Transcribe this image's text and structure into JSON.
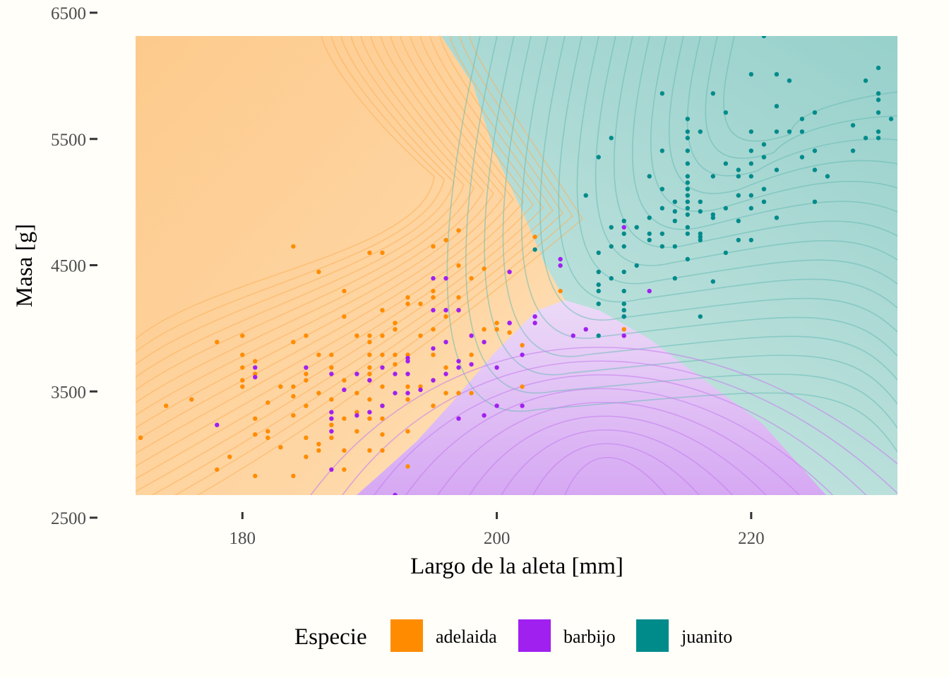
{
  "chart_data": {
    "type": "scatter",
    "xlabel": "Largo de la aleta [mm]",
    "ylabel": "Masa [g]",
    "xlim": [
      171.6,
      231.5
    ],
    "ylim": [
      2700,
      6300
    ],
    "x_ticks": [
      180,
      200,
      220
    ],
    "y_ticks": [
      2500,
      3500,
      4500,
      5500,
      6500
    ],
    "x_tick_labels": [
      "180",
      "200",
      "220"
    ],
    "y_tick_labels": [
      "2500",
      "3500",
      "4500",
      "5500",
      "6500"
    ],
    "background": "decision regions with density contour lines",
    "legend": {
      "title": "Especie",
      "placement": "bottom",
      "entries": [
        {
          "label": "adelaida",
          "color": "#ff8c00"
        },
        {
          "label": "barbijo",
          "color": "#a020f0"
        },
        {
          "label": "juanito",
          "color": "#008b8b"
        }
      ]
    },
    "series": [
      {
        "name": "adelaida",
        "color": "#ff8c00",
        "points": [
          [
            172,
            3150
          ],
          [
            174,
            3400
          ],
          [
            176,
            3450
          ],
          [
            178,
            3900
          ],
          [
            178,
            2900
          ],
          [
            179,
            3000
          ],
          [
            180,
            3950
          ],
          [
            180,
            3800
          ],
          [
            180,
            3700
          ],
          [
            180,
            3600
          ],
          [
            180,
            3550
          ],
          [
            181,
            3750
          ],
          [
            181,
            3650
          ],
          [
            181,
            3300
          ],
          [
            181,
            3175
          ],
          [
            181,
            2850
          ],
          [
            182,
            3425
          ],
          [
            182,
            3200
          ],
          [
            182,
            3150
          ],
          [
            183,
            3075
          ],
          [
            183,
            3550
          ],
          [
            184,
            4650
          ],
          [
            184,
            3900
          ],
          [
            184,
            3550
          ],
          [
            184,
            3475
          ],
          [
            184,
            3325
          ],
          [
            184,
            2850
          ],
          [
            185,
            3950
          ],
          [
            185,
            3650
          ],
          [
            185,
            3600
          ],
          [
            185,
            3400
          ],
          [
            185,
            3150
          ],
          [
            185,
            3000
          ],
          [
            186,
            4450
          ],
          [
            186,
            3800
          ],
          [
            186,
            3500
          ],
          [
            186,
            3100
          ],
          [
            186,
            3050
          ],
          [
            187,
            3800
          ],
          [
            187,
            3700
          ],
          [
            187,
            3450
          ],
          [
            187,
            3300
          ],
          [
            187,
            3250
          ],
          [
            187,
            3150
          ],
          [
            188,
            4300
          ],
          [
            188,
            4100
          ],
          [
            188,
            3600
          ],
          [
            188,
            3300
          ],
          [
            188,
            3050
          ],
          [
            188,
            2900
          ],
          [
            189,
            3950
          ],
          [
            189,
            3500
          ],
          [
            189,
            3350
          ],
          [
            189,
            3200
          ],
          [
            190,
            4600
          ],
          [
            190,
            3950
          ],
          [
            190,
            3900
          ],
          [
            190,
            3800
          ],
          [
            190,
            3700
          ],
          [
            190,
            3650
          ],
          [
            190,
            3600
          ],
          [
            190,
            3450
          ],
          [
            190,
            3300
          ],
          [
            190,
            3050
          ],
          [
            191,
            4600
          ],
          [
            191,
            4150
          ],
          [
            191,
            3950
          ],
          [
            191,
            3800
          ],
          [
            191,
            3550
          ],
          [
            191,
            3400
          ],
          [
            191,
            3300
          ],
          [
            191,
            3175
          ],
          [
            191,
            3050
          ],
          [
            192,
            4050
          ],
          [
            192,
            4000
          ],
          [
            192,
            3800
          ],
          [
            192,
            3725
          ],
          [
            193,
            4250
          ],
          [
            193,
            4200
          ],
          [
            193,
            3800
          ],
          [
            193,
            3550
          ],
          [
            193,
            3450
          ],
          [
            193,
            3200
          ],
          [
            193,
            2925
          ],
          [
            194,
            4200
          ],
          [
            194,
            3950
          ],
          [
            194,
            3550
          ],
          [
            195,
            4650
          ],
          [
            195,
            4300
          ],
          [
            195,
            4250
          ],
          [
            195,
            4000
          ],
          [
            195,
            3800
          ],
          [
            195,
            3600
          ],
          [
            195,
            3400
          ],
          [
            196,
            4700
          ],
          [
            196,
            4100
          ],
          [
            196,
            3700
          ],
          [
            196,
            3500
          ],
          [
            197,
            4775
          ],
          [
            197,
            4500
          ],
          [
            197,
            4250
          ],
          [
            197,
            4150
          ],
          [
            197,
            3500
          ],
          [
            198,
            4400
          ],
          [
            198,
            3800
          ],
          [
            198,
            3500
          ],
          [
            199,
            4475
          ],
          [
            199,
            4000
          ],
          [
            200,
            4050
          ],
          [
            200,
            4000
          ],
          [
            201,
            4050
          ],
          [
            201,
            3975
          ],
          [
            202,
            3875
          ],
          [
            202,
            3550
          ],
          [
            203,
            4725
          ],
          [
            205,
            4300
          ],
          [
            210,
            4000
          ]
        ]
      },
      {
        "name": "barbijo",
        "color": "#a020f0",
        "points": [
          [
            178,
            3250
          ],
          [
            181,
            3700
          ],
          [
            181,
            3625
          ],
          [
            185,
            3700
          ],
          [
            187,
            3650
          ],
          [
            187,
            3350
          ],
          [
            187,
            3300
          ],
          [
            187,
            3200
          ],
          [
            187,
            2900
          ],
          [
            188,
            3525
          ],
          [
            189,
            3650
          ],
          [
            189,
            3325
          ],
          [
            190,
            3600
          ],
          [
            190,
            3350
          ],
          [
            191,
            3700
          ],
          [
            191,
            3400
          ],
          [
            192,
            3650
          ],
          [
            192,
            3500
          ],
          [
            192,
            2700
          ],
          [
            193,
            3775
          ],
          [
            193,
            3750
          ],
          [
            193,
            3650
          ],
          [
            193,
            3500
          ],
          [
            194,
            3525
          ],
          [
            195,
            4400
          ],
          [
            195,
            4150
          ],
          [
            195,
            3850
          ],
          [
            195,
            3600
          ],
          [
            196,
            4400
          ],
          [
            196,
            4150
          ],
          [
            196,
            3900
          ],
          [
            196,
            3650
          ],
          [
            197,
            4150
          ],
          [
            197,
            3750
          ],
          [
            197,
            3700
          ],
          [
            197,
            3300
          ],
          [
            198,
            3950
          ],
          [
            198,
            3725
          ],
          [
            199,
            3900
          ],
          [
            199,
            3325
          ],
          [
            200,
            3700
          ],
          [
            200,
            3400
          ],
          [
            201,
            4450
          ],
          [
            201,
            4050
          ],
          [
            201,
            4050
          ],
          [
            202,
            3800
          ],
          [
            202,
            3400
          ],
          [
            203,
            4100
          ],
          [
            203,
            4050
          ],
          [
            205,
            4550
          ],
          [
            205,
            4500
          ],
          [
            206,
            3950
          ],
          [
            207,
            4000
          ],
          [
            210,
            4800
          ],
          [
            210,
            4100
          ],
          [
            210,
            3950
          ],
          [
            212,
            4300
          ]
        ]
      },
      {
        "name": "juanito",
        "color": "#008b8b",
        "points": [
          [
            203,
            4625
          ],
          [
            207,
            5050
          ],
          [
            208,
            5350
          ],
          [
            208,
            4600
          ],
          [
            208,
            4450
          ],
          [
            208,
            4350
          ],
          [
            208,
            4300
          ],
          [
            208,
            4200
          ],
          [
            208,
            3950
          ],
          [
            209,
            5500
          ],
          [
            209,
            4800
          ],
          [
            209,
            4650
          ],
          [
            209,
            4400
          ],
          [
            210,
            4850
          ],
          [
            210,
            4750
          ],
          [
            210,
            4650
          ],
          [
            210,
            4450
          ],
          [
            210,
            4300
          ],
          [
            210,
            4200
          ],
          [
            210,
            4150
          ],
          [
            210,
            4100
          ],
          [
            211,
            4800
          ],
          [
            211,
            4500
          ],
          [
            212,
            5200
          ],
          [
            212,
            4875
          ],
          [
            212,
            4750
          ],
          [
            212,
            4700
          ],
          [
            213,
            5850
          ],
          [
            213,
            5400
          ],
          [
            213,
            5100
          ],
          [
            213,
            4950
          ],
          [
            213,
            4650
          ],
          [
            213,
            4750
          ],
          [
            214,
            5000
          ],
          [
            214,
            4925
          ],
          [
            214,
            4850
          ],
          [
            214,
            4650
          ],
          [
            214,
            4400
          ],
          [
            215,
            5650
          ],
          [
            215,
            5550
          ],
          [
            215,
            5500
          ],
          [
            215,
            5400
          ],
          [
            215,
            5300
          ],
          [
            215,
            5200
          ],
          [
            215,
            5150
          ],
          [
            215,
            5100
          ],
          [
            215,
            5050
          ],
          [
            215,
            5000
          ],
          [
            215,
            4950
          ],
          [
            215,
            4900
          ],
          [
            215,
            4800
          ],
          [
            215,
            4750
          ],
          [
            215,
            4550
          ],
          [
            216,
            5550
          ],
          [
            216,
            5000
          ],
          [
            216,
            4925
          ],
          [
            216,
            4750
          ],
          [
            216,
            4725
          ],
          [
            216,
            4700
          ],
          [
            216,
            4100
          ],
          [
            217,
            5850
          ],
          [
            217,
            5200
          ],
          [
            217,
            4900
          ],
          [
            217,
            4875
          ],
          [
            217,
            4375
          ],
          [
            218,
            5700
          ],
          [
            218,
            5300
          ],
          [
            218,
            4950
          ],
          [
            218,
            4600
          ],
          [
            219,
            5250
          ],
          [
            219,
            5200
          ],
          [
            219,
            5050
          ],
          [
            219,
            4850
          ],
          [
            219,
            4700
          ],
          [
            220,
            6000
          ],
          [
            220,
            5550
          ],
          [
            220,
            5400
          ],
          [
            220,
            5300
          ],
          [
            220,
            5200
          ],
          [
            220,
            5050
          ],
          [
            220,
            4950
          ],
          [
            220,
            4700
          ],
          [
            221,
            6300
          ],
          [
            221,
            5450
          ],
          [
            221,
            5350
          ],
          [
            221,
            5100
          ],
          [
            221,
            5000
          ],
          [
            222,
            6000
          ],
          [
            222,
            5750
          ],
          [
            222,
            5550
          ],
          [
            222,
            5250
          ],
          [
            222,
            4875
          ],
          [
            223,
            5950
          ],
          [
            223,
            5550
          ],
          [
            224,
            5550
          ],
          [
            224,
            5650
          ],
          [
            224,
            5350
          ],
          [
            225,
            5700
          ],
          [
            225,
            5400
          ],
          [
            225,
            5250
          ],
          [
            225,
            5000
          ],
          [
            226,
            5200
          ],
          [
            228,
            5600
          ],
          [
            228,
            5400
          ],
          [
            229,
            5950
          ],
          [
            229,
            5500
          ],
          [
            230,
            6050
          ],
          [
            230,
            5850
          ],
          [
            230,
            5800
          ],
          [
            230,
            5700
          ],
          [
            230,
            5550
          ],
          [
            230,
            5500
          ],
          [
            231,
            5650
          ]
        ]
      }
    ]
  }
}
